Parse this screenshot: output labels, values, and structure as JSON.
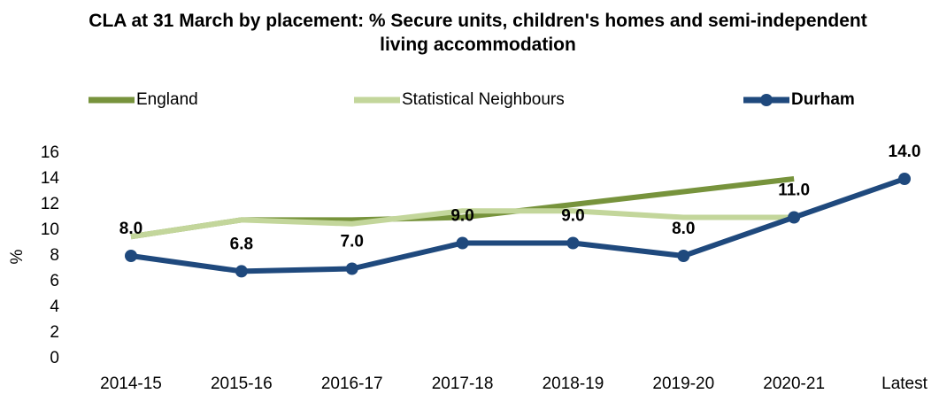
{
  "chart_data": {
    "type": "line",
    "title": "CLA at 31 March by placement: % Secure units, children's homes and semi-independent living accommodation",
    "y_label": "%",
    "categories": [
      "2014-15",
      "2015-16",
      "2016-17",
      "2017-18",
      "2018-19",
      "2019-20",
      "2020-21",
      "Latest"
    ],
    "series": [
      {
        "name": "England",
        "color": "#77933c",
        "values": [
          9.5,
          10.8,
          10.8,
          11,
          12,
          13,
          14,
          null
        ]
      },
      {
        "name": "Statistical Neighbours",
        "color": "#c3d69b",
        "values": [
          9.5,
          10.8,
          10.5,
          11.5,
          11.5,
          11,
          11,
          null
        ]
      },
      {
        "name": "Durham",
        "color": "#1f497d",
        "markers": true,
        "values": [
          8,
          6.8,
          7,
          9,
          9,
          8,
          11,
          14
        ],
        "value_labels": [
          "8.0",
          "6.8",
          "7.0",
          "9.0",
          "9.0",
          "8.0",
          "11.0",
          "14.0"
        ]
      }
    ],
    "ylim": [
      0,
      16
    ],
    "yticks": [
      0,
      2,
      4,
      6,
      8,
      10,
      12,
      14,
      16
    ],
    "grid": false
  }
}
